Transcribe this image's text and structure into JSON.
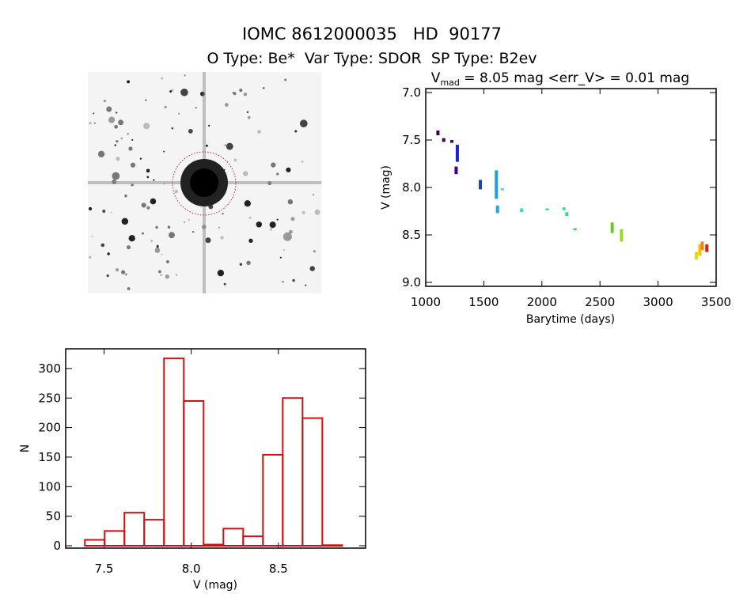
{
  "header": {
    "title": "IOMC 8612000035   HD  90177",
    "subtitle": "O Type: Be*  Var Type: SDOR  SP Type: B2ev"
  },
  "chart_data": [
    {
      "type": "scatter",
      "title_main": "V",
      "title_sub": "mad",
      "title_rest": " = 8.05 mag <err_V> = 0.01 mag",
      "xlabel": "Barytime (days)",
      "ylabel": "V (mag)",
      "xlim": [
        1000,
        3500
      ],
      "ylim": [
        9.0,
        7.0
      ],
      "xticks": [
        "1000",
        "1500",
        "2000",
        "2500",
        "3000",
        "3500"
      ],
      "yticks": [
        "7.0",
        "7.5",
        "8.0",
        "8.5",
        "9.0"
      ],
      "points": [
        {
          "t": 1105,
          "v": [
            7.4,
            7.45
          ],
          "color": "#3a0050"
        },
        {
          "t": 1155,
          "v": [
            7.48,
            7.52
          ],
          "color": "#40005a"
        },
        {
          "t": 1225,
          "v": [
            7.5,
            7.53
          ],
          "color": "#400070"
        },
        {
          "t": 1272,
          "v": [
            7.55,
            7.73
          ],
          "color": "#2020d0"
        },
        {
          "t": 1262,
          "v": [
            7.78,
            7.86
          ],
          "color": "#400080"
        },
        {
          "t": 1470,
          "v": [
            7.92,
            8.02
          ],
          "color": "#2040c0"
        },
        {
          "t": 1608,
          "v": [
            7.82,
            8.12
          ],
          "color": "#20a0e0"
        },
        {
          "t": 1618,
          "v": [
            8.19,
            8.27
          ],
          "color": "#20a8e0"
        },
        {
          "t": 1660,
          "v": [
            8.01,
            8.03
          ],
          "color": "#40d0e0"
        },
        {
          "t": 1825,
          "v": [
            8.22,
            8.26
          ],
          "color": "#30e0c8"
        },
        {
          "t": 2045,
          "v": [
            8.22,
            8.24
          ],
          "color": "#30e0b0"
        },
        {
          "t": 2190,
          "v": [
            8.21,
            8.24
          ],
          "color": "#30e090"
        },
        {
          "t": 2215,
          "v": [
            8.26,
            8.3
          ],
          "color": "#30e080"
        },
        {
          "t": 2285,
          "v": [
            8.43,
            8.45
          ],
          "color": "#30d040"
        },
        {
          "t": 2605,
          "v": [
            8.37,
            8.48
          ],
          "color": "#60d020"
        },
        {
          "t": 2685,
          "v": [
            8.44,
            8.57
          ],
          "color": "#90e020"
        },
        {
          "t": 3330,
          "v": [
            8.68,
            8.76
          ],
          "color": "#d8e000"
        },
        {
          "t": 3360,
          "v": [
            8.6,
            8.72
          ],
          "color": "#ffc000"
        },
        {
          "t": 3380,
          "v": [
            8.57,
            8.66
          ],
          "color": "#ff8000"
        },
        {
          "t": 3420,
          "v": [
            8.6,
            8.68
          ],
          "color": "#e02000"
        }
      ]
    },
    {
      "type": "bar",
      "xlabel": "V (mag)",
      "ylabel": "N",
      "xlim": [
        7.28,
        9.0
      ],
      "ylim": [
        0,
        330
      ],
      "xticks": [
        "7.5",
        "8.0",
        "8.5"
      ],
      "yticks": [
        "0",
        "50",
        "100",
        "150",
        "200",
        "250",
        "300"
      ],
      "bin_start": 7.39,
      "bin_width": 0.1135,
      "values": [
        10,
        25,
        56,
        44,
        317,
        245,
        2,
        29,
        16,
        154,
        250,
        216,
        1
      ],
      "color": "#d01010"
    }
  ]
}
